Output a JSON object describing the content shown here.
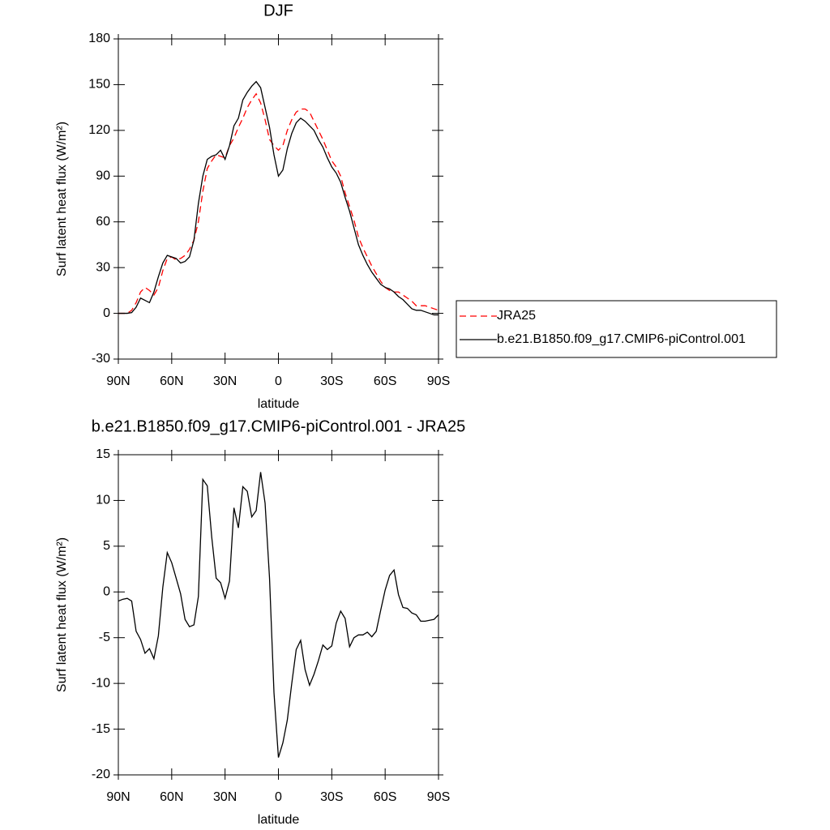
{
  "chart_data": [
    {
      "type": "line",
      "title": "DJF",
      "x_label": "latitude",
      "y_label": "Surf latent heat flux (W/m²)",
      "x": [
        90,
        87.5,
        85,
        82.5,
        80,
        77.5,
        75,
        72.5,
        70,
        67.5,
        65,
        62.5,
        60,
        57.5,
        55,
        52.5,
        50,
        47.5,
        45,
        42.5,
        40,
        37.5,
        35,
        32.5,
        30,
        27.5,
        25,
        22.5,
        20,
        17.5,
        15,
        12.5,
        10,
        7.5,
        5,
        2.5,
        0,
        -2.5,
        -5,
        -7.5,
        -10,
        -12.5,
        -15,
        -17.5,
        -20,
        -22.5,
        -25,
        -27.5,
        -30,
        -32.5,
        -35,
        -37.5,
        -40,
        -42.5,
        -45,
        -47.5,
        -50,
        -52.5,
        -55,
        -57.5,
        -60,
        -62.5,
        -65,
        -67.5,
        -70,
        -72.5,
        -75,
        -77.5,
        -80,
        -82.5,
        -85,
        -87.5,
        -90
      ],
      "series": [
        {
          "name": "JRA25",
          "color": "#ff0000",
          "line_style": "dashed",
          "values": [
            0,
            0,
            0,
            2,
            7,
            14,
            17,
            15,
            12,
            17,
            28,
            36,
            37,
            35,
            36,
            38,
            42,
            48,
            60,
            80,
            95,
            100,
            104,
            103,
            102,
            110,
            115,
            122,
            128,
            135,
            140,
            144,
            138,
            127,
            114,
            110,
            107,
            110,
            120,
            127,
            132,
            134,
            134,
            132,
            126,
            120,
            114,
            107,
            100,
            96,
            90,
            79,
            70,
            61,
            50,
            43,
            37,
            31,
            26,
            21,
            17,
            15,
            14,
            14,
            12,
            10,
            8,
            5,
            5,
            5,
            4,
            3,
            2
          ]
        },
        {
          "name": "b.e21.B1850.f09_g17.CMIP6-piControl.001",
          "color": "#000000",
          "line_style": "solid",
          "values": [
            0,
            0,
            0,
            0.5,
            4,
            10,
            8.5,
            7,
            14,
            24,
            33,
            38,
            37,
            36,
            33,
            34,
            37,
            48,
            72,
            90,
            101,
            103,
            104,
            107,
            101,
            110,
            123,
            128,
            140,
            145,
            149,
            152,
            148,
            135,
            122,
            104,
            90,
            94,
            108,
            118,
            125,
            128,
            126,
            123,
            120,
            114,
            109,
            102,
            96,
            92,
            86,
            76,
            67,
            56,
            45,
            38,
            32,
            27,
            23,
            19,
            17,
            16,
            14,
            11,
            9,
            6,
            3,
            2,
            2,
            1,
            0,
            -1,
            -1
          ]
        }
      ],
      "xlim": [
        90,
        -90
      ],
      "xticks": [
        {
          "value": 90,
          "label": "90N"
        },
        {
          "value": 60,
          "label": "60N"
        },
        {
          "value": 30,
          "label": "30N"
        },
        0,
        {
          "value": -30,
          "label": "30S"
        },
        {
          "value": -60,
          "label": "60S"
        },
        {
          "value": -90,
          "label": "90S"
        }
      ],
      "ylim": [
        -30,
        180
      ],
      "yticks": [
        -30,
        0,
        30,
        60,
        90,
        120,
        150,
        180
      ],
      "legend": "right"
    },
    {
      "type": "line",
      "title": "b.e21.B1850.f09_g17.CMIP6-piControl.001 - JRA25",
      "x_label": "latitude",
      "y_label": "Surf latent heat flux (W/m²)",
      "x": [
        90,
        87.5,
        85,
        82.5,
        80,
        77.5,
        75,
        72.5,
        70,
        67.5,
        65,
        62.5,
        60,
        57.5,
        55,
        52.5,
        50,
        47.5,
        45,
        42.5,
        40,
        37.5,
        35,
        32.5,
        30,
        27.5,
        25,
        22.5,
        20,
        17.5,
        15,
        12.5,
        10,
        7.5,
        5,
        2.5,
        0,
        -2.5,
        -5,
        -7.5,
        -10,
        -12.5,
        -15,
        -17.5,
        -20,
        -22.5,
        -25,
        -27.5,
        -30,
        -32.5,
        -35,
        -37.5,
        -40,
        -42.5,
        -45,
        -47.5,
        -50,
        -52.5,
        -55,
        -57.5,
        -60,
        -62.5,
        -65,
        -67.5,
        -70,
        -72.5,
        -75,
        -77.5,
        -80,
        -82.5,
        -85,
        -87.5,
        -90
      ],
      "values": [
        -1,
        -0.8,
        -0.7,
        -1,
        -4.3,
        -5.2,
        -6.7,
        -6.2,
        -7.3,
        -4.8,
        0.5,
        4.3,
        3.2,
        1.5,
        -0.2,
        -3.0,
        -3.8,
        -3.6,
        -0.5,
        12.3,
        11.6,
        6.0,
        1.5,
        1.0,
        -0.7,
        1.2,
        9.2,
        7.0,
        11.5,
        11.0,
        8.2,
        8.9,
        13.1,
        9.7,
        1.5,
        -11,
        -18.1,
        -16.5,
        -14,
        -10,
        -6.3,
        -5.3,
        -8.5,
        -10.2,
        -9,
        -7.5,
        -5.8,
        -6.3,
        -5.9,
        -3.4,
        -2.1,
        -2.9,
        -6.0,
        -5.0,
        -4.7,
        -4.7,
        -4.4,
        -4.9,
        -4.3,
        -2.0,
        0.2,
        1.8,
        2.4,
        -0.3,
        -1.7,
        -1.8,
        -2.3,
        -2.5,
        -3.2,
        -3.2,
        -3.1,
        -3.0,
        -2.5
      ],
      "color": "#000000",
      "line_style": "solid",
      "xlim": [
        90,
        -90
      ],
      "xticks": [
        {
          "value": 90,
          "label": "90N"
        },
        {
          "value": 60,
          "label": "60N"
        },
        {
          "value": 30,
          "label": "30N"
        },
        0,
        {
          "value": -30,
          "label": "30S"
        },
        {
          "value": -60,
          "label": "60S"
        },
        {
          "value": -90,
          "label": "90S"
        }
      ],
      "ylim": [
        -20,
        15
      ],
      "yticks": [
        -20,
        -15,
        -10,
        -5,
        0,
        5,
        10,
        15
      ]
    }
  ]
}
